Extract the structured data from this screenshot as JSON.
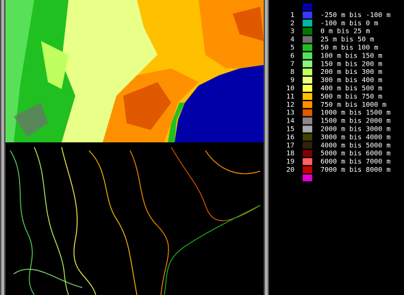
{
  "legend": [
    {
      "color": "#0000a8"
    },
    {
      "number": 1,
      "label": "-250 m bis -100 m",
      "color": "#3838ff"
    },
    {
      "number": 2,
      "label": "-100 m bis 0 m",
      "color": "#00b8a0"
    },
    {
      "number": 3,
      "label": "0 m bis 25 m",
      "color": "#007800"
    },
    {
      "number": 4,
      "label": "25 m bis 50 m",
      "color": "#707070"
    },
    {
      "number": 5,
      "label": "50 m bis 100 m",
      "color": "#20c020"
    },
    {
      "number": 6,
      "label": "100 m bis 150 m",
      "color": "#58e058"
    },
    {
      "number": 7,
      "label": "150 m bis 200 m",
      "color": "#90f080"
    },
    {
      "number": 8,
      "label": "200 m bis 300 m",
      "color": "#c0ff60"
    },
    {
      "number": 9,
      "label": "300 m bis 400 m",
      "color": "#e8ff88"
    },
    {
      "number": 10,
      "label": "400 m bis 500 m",
      "color": "#ffff50"
    },
    {
      "number": 11,
      "label": "500 m bis 750 m",
      "color": "#ffc000"
    },
    {
      "number": 12,
      "label": "750 m bis 1000 m",
      "color": "#ff9000"
    },
    {
      "number": 13,
      "label": "1000 m bis 1500 m",
      "color": "#e05800"
    },
    {
      "number": 14,
      "label": "1500 m bis 2000 m",
      "color": "#888888"
    },
    {
      "number": 15,
      "label": "2000 m bis 3000 m",
      "color": "#a8a8a8"
    },
    {
      "number": 16,
      "label": "3000 m bis 4000 m",
      "color": "#404000"
    },
    {
      "number": 17,
      "label": "4000 m bis 5000 m",
      "color": "#302010"
    },
    {
      "number": 18,
      "label": "5000 m bis 6000 m",
      "color": "#800000"
    },
    {
      "number": 19,
      "label": "6000 m bis 7000 m",
      "color": "#ff6060"
    },
    {
      "number": 20,
      "label": "7000 m bis 8000 m",
      "color": "#c80000"
    },
    {
      "color": "#e000d0"
    }
  ]
}
